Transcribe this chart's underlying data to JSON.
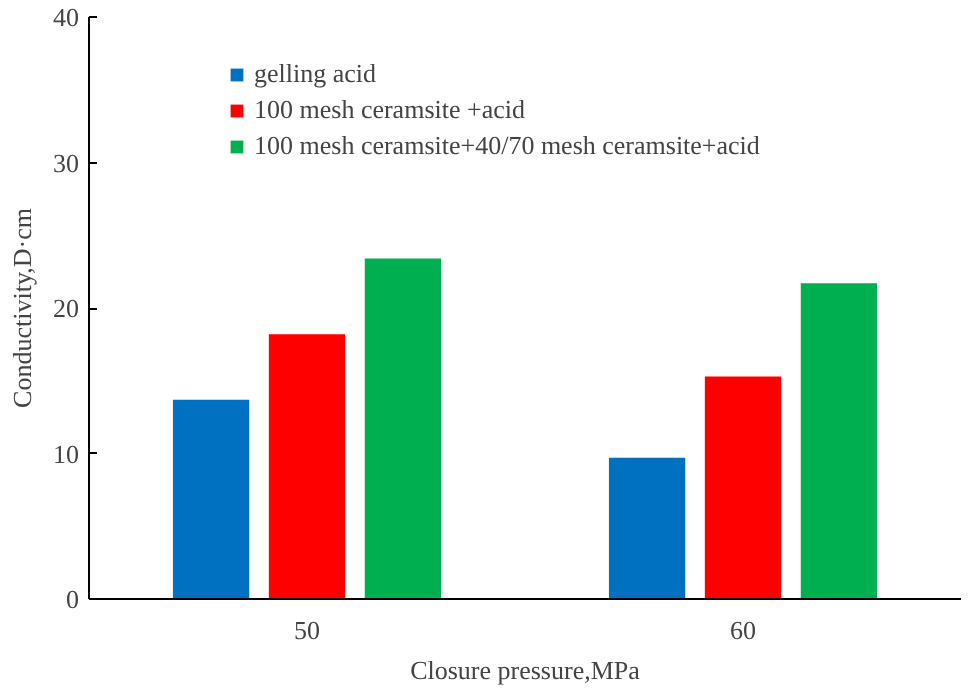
{
  "chart_data": {
    "type": "bar",
    "xlabel": "Closure pressure,MPa",
    "ylabel": "Conductivity,D·cm",
    "categories": [
      "50",
      "60"
    ],
    "series": [
      {
        "name": "gelling acid",
        "color": "#0070c0",
        "values": [
          13.7,
          9.7
        ]
      },
      {
        "name": "100 mesh ceramsite +acid",
        "color": "#ff0000",
        "values": [
          18.2,
          15.3
        ]
      },
      {
        "name": "100 mesh ceramsite+40/70 mesh ceramsite+acid",
        "color": "#00b050",
        "values": [
          23.4,
          21.7
        ]
      }
    ],
    "ylim": [
      0,
      40
    ],
    "yticks": [
      0,
      10,
      20,
      30,
      40
    ],
    "grid": false,
    "legend": "top left"
  }
}
